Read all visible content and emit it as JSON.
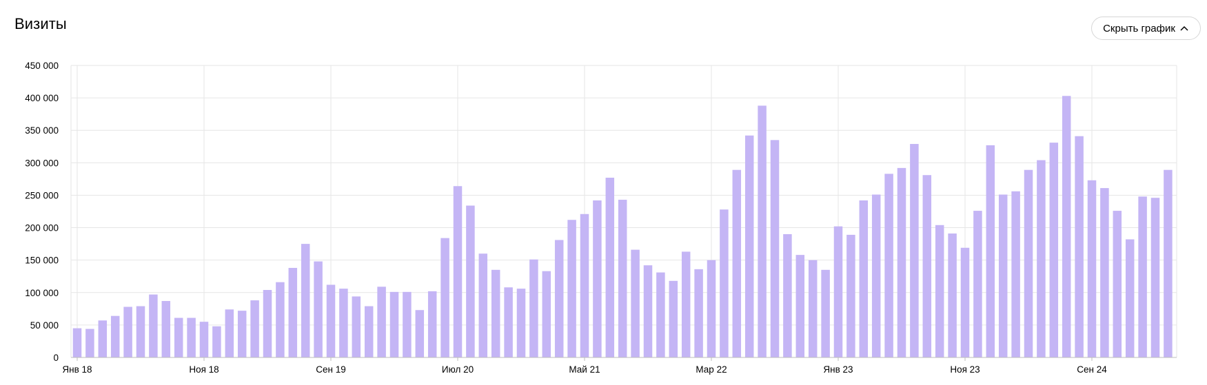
{
  "header": {
    "title": "Визиты",
    "hide_chart_label": "Скрыть график",
    "hide_chart_icon": "chevron-up-icon"
  },
  "colors": {
    "bar": "#c4b5f5",
    "grid": "#e6e6e6"
  },
  "chart_data": {
    "type": "bar",
    "title": "",
    "xlabel": "",
    "ylabel": "",
    "ylim": [
      0,
      450000
    ],
    "y_ticks": [
      {
        "value": 0,
        "label": "0"
      },
      {
        "value": 50000,
        "label": "50 000"
      },
      {
        "value": 100000,
        "label": "100 000"
      },
      {
        "value": 150000,
        "label": "150 000"
      },
      {
        "value": 200000,
        "label": "200 000"
      },
      {
        "value": 250000,
        "label": "250 000"
      },
      {
        "value": 300000,
        "label": "300 000"
      },
      {
        "value": 350000,
        "label": "350 000"
      },
      {
        "value": 400000,
        "label": "400 000"
      },
      {
        "value": 450000,
        "label": "450 000"
      }
    ],
    "x_ticks": [
      {
        "index": 0,
        "label": "Янв 18"
      },
      {
        "index": 10,
        "label": "Ноя 18"
      },
      {
        "index": 20,
        "label": "Сен 19"
      },
      {
        "index": 30,
        "label": "Июл 20"
      },
      {
        "index": 40,
        "label": "Май 21"
      },
      {
        "index": 50,
        "label": "Мар 22"
      },
      {
        "index": 60,
        "label": "Янв 23"
      },
      {
        "index": 70,
        "label": "Ноя 23"
      },
      {
        "index": 80,
        "label": "Сен 24"
      }
    ],
    "grid": true,
    "legend": "none",
    "series": [
      {
        "values": [
          45000,
          44000,
          57000,
          64000,
          78000,
          79000,
          97000,
          87000,
          61000,
          61000,
          55000,
          48000,
          74000,
          72000,
          88000,
          104000,
          116000,
          138000,
          175000,
          148000,
          112000,
          106000,
          94000,
          79000,
          109000,
          101000,
          101000,
          73000,
          102000,
          184000,
          264000,
          234000,
          160000,
          135000,
          108000,
          106000,
          151000,
          133000,
          181000,
          212000,
          221000,
          242000,
          277000,
          243000,
          166000,
          142000,
          131000,
          118000,
          163000,
          136000,
          150000,
          228000,
          289000,
          342000,
          388000,
          335000,
          190000,
          158000,
          150000,
          135000,
          202000,
          189000,
          242000,
          251000,
          283000,
          292000,
          329000,
          281000,
          204000,
          191000,
          169000,
          226000,
          327000,
          251000,
          256000,
          289000,
          304000,
          331000,
          403000,
          341000,
          273000,
          261000,
          226000,
          182000,
          248000,
          246000,
          289000
        ]
      }
    ]
  }
}
